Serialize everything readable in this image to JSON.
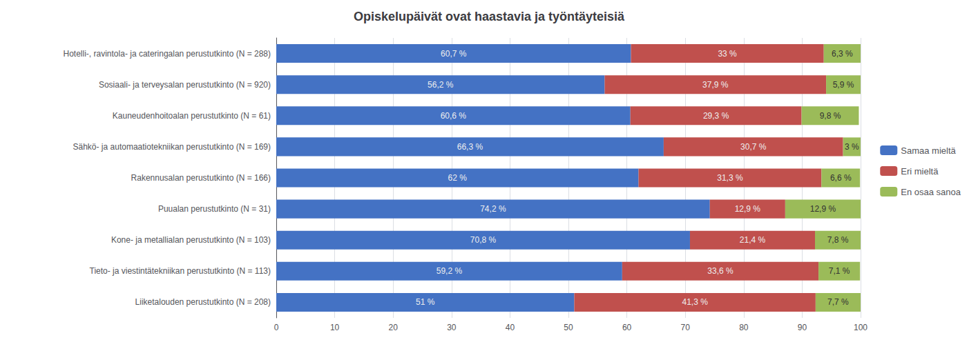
{
  "chart_data": {
    "type": "bar",
    "orientation": "horizontal",
    "stacked": true,
    "title": "Opiskelupäivät ovat haastavia ja työntäyteisiä",
    "categories": [
      "Hotelli-, ravintola- ja cateringalan perustutkinto (N = 288)",
      "Sosiaali- ja terveysalan perustutkinto (N = 920)",
      "Kauneudenhoitoalan perustutkinto (N = 61)",
      "Sähkö- ja automaatiotekniikan perustutkinto (N = 169)",
      "Rakennusalan perustutkinto (N = 166)",
      "Puualan perustutkinto (N = 31)",
      "Kone- ja metallialan perustutkinto (N = 103)",
      "Tieto- ja viestintätekniikan perustutkinto (N = 113)",
      "Liiketalouden perustutkinto (N = 208)"
    ],
    "series": [
      {
        "name": "Samaa mieltä",
        "color": "#4472C4",
        "values": [
          60.7,
          56.2,
          60.6,
          66.3,
          62.0,
          74.2,
          70.8,
          59.2,
          51.0
        ],
        "value_labels": [
          "60,7 %",
          "56,2 %",
          "60,6 %",
          "66,3 %",
          "62 %",
          "74,2 %",
          "70,8 %",
          "59,2 %",
          "51 %"
        ]
      },
      {
        "name": "Eri mieltä",
        "color": "#C0504D",
        "values": [
          33.0,
          37.9,
          29.3,
          30.7,
          31.3,
          12.9,
          21.4,
          33.6,
          41.3
        ],
        "value_labels": [
          "33 %",
          "37,9 %",
          "29,3 %",
          "30,7 %",
          "31,3 %",
          "12,9 %",
          "21,4 %",
          "33,6 %",
          "41,3 %"
        ]
      },
      {
        "name": "En osaa sanoa",
        "color": "#9BBB59",
        "values": [
          6.3,
          5.9,
          9.8,
          3.0,
          6.6,
          12.9,
          7.8,
          7.1,
          7.7
        ],
        "value_labels": [
          "6,3 %",
          "5,9 %",
          "9,8 %",
          "3 %",
          "6,6 %",
          "12,9 %",
          "7,8 %",
          "7,1 %",
          "7,7 %"
        ]
      }
    ],
    "data_labels": true,
    "xlim": [
      0,
      100
    ],
    "xticks": [
      0,
      10,
      20,
      30,
      40,
      50,
      60,
      70,
      80,
      90,
      100
    ],
    "grid": true,
    "legend": "right"
  }
}
